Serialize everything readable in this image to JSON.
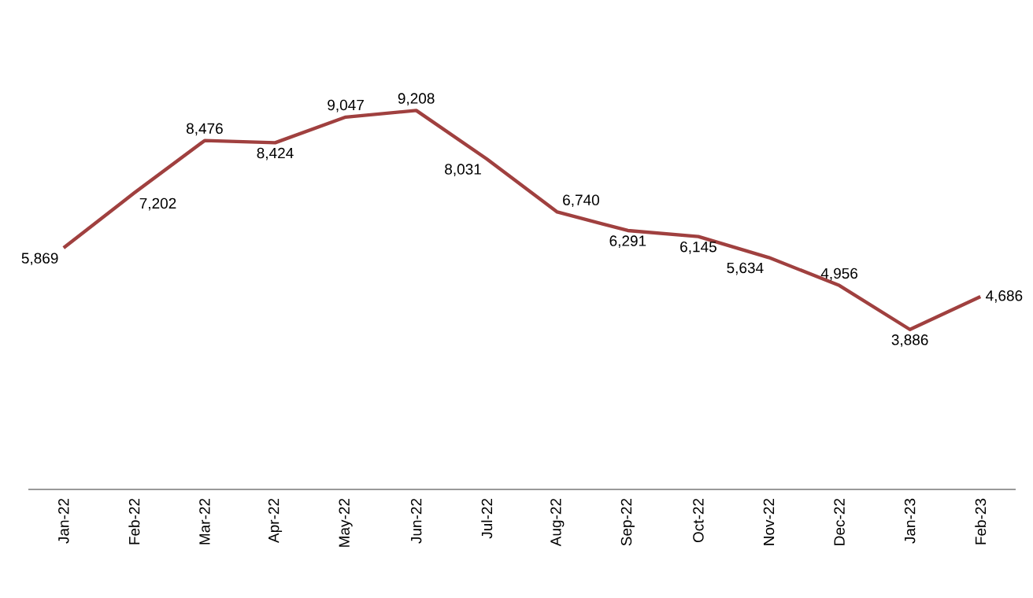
{
  "chart_data": {
    "type": "line",
    "categories": [
      "Jan-22",
      "Feb-22",
      "Mar-22",
      "Apr-22",
      "May-22",
      "Jun-22",
      "Jul-22",
      "Aug-22",
      "Sep-22",
      "Oct-22",
      "Nov-22",
      "Dec-22",
      "Jan-23",
      "Feb-23"
    ],
    "series": [
      {
        "color": "#a0403f",
        "values": [
          5869,
          7202,
          8476,
          8424,
          9047,
          9208,
          8031,
          6740,
          6291,
          6145,
          5634,
          4956,
          3886,
          4686
        ],
        "value_labels": [
          "5,869",
          "7,202",
          "8,476",
          "8,424",
          "9,047",
          "9,208",
          "8,031",
          "6,740",
          "6,291",
          "6,145",
          "5,634",
          "4,956",
          "3,886",
          "4,686"
        ]
      }
    ],
    "tick_labels": "x",
    "grid": false,
    "marker": "none",
    "line_style": "solid"
  }
}
